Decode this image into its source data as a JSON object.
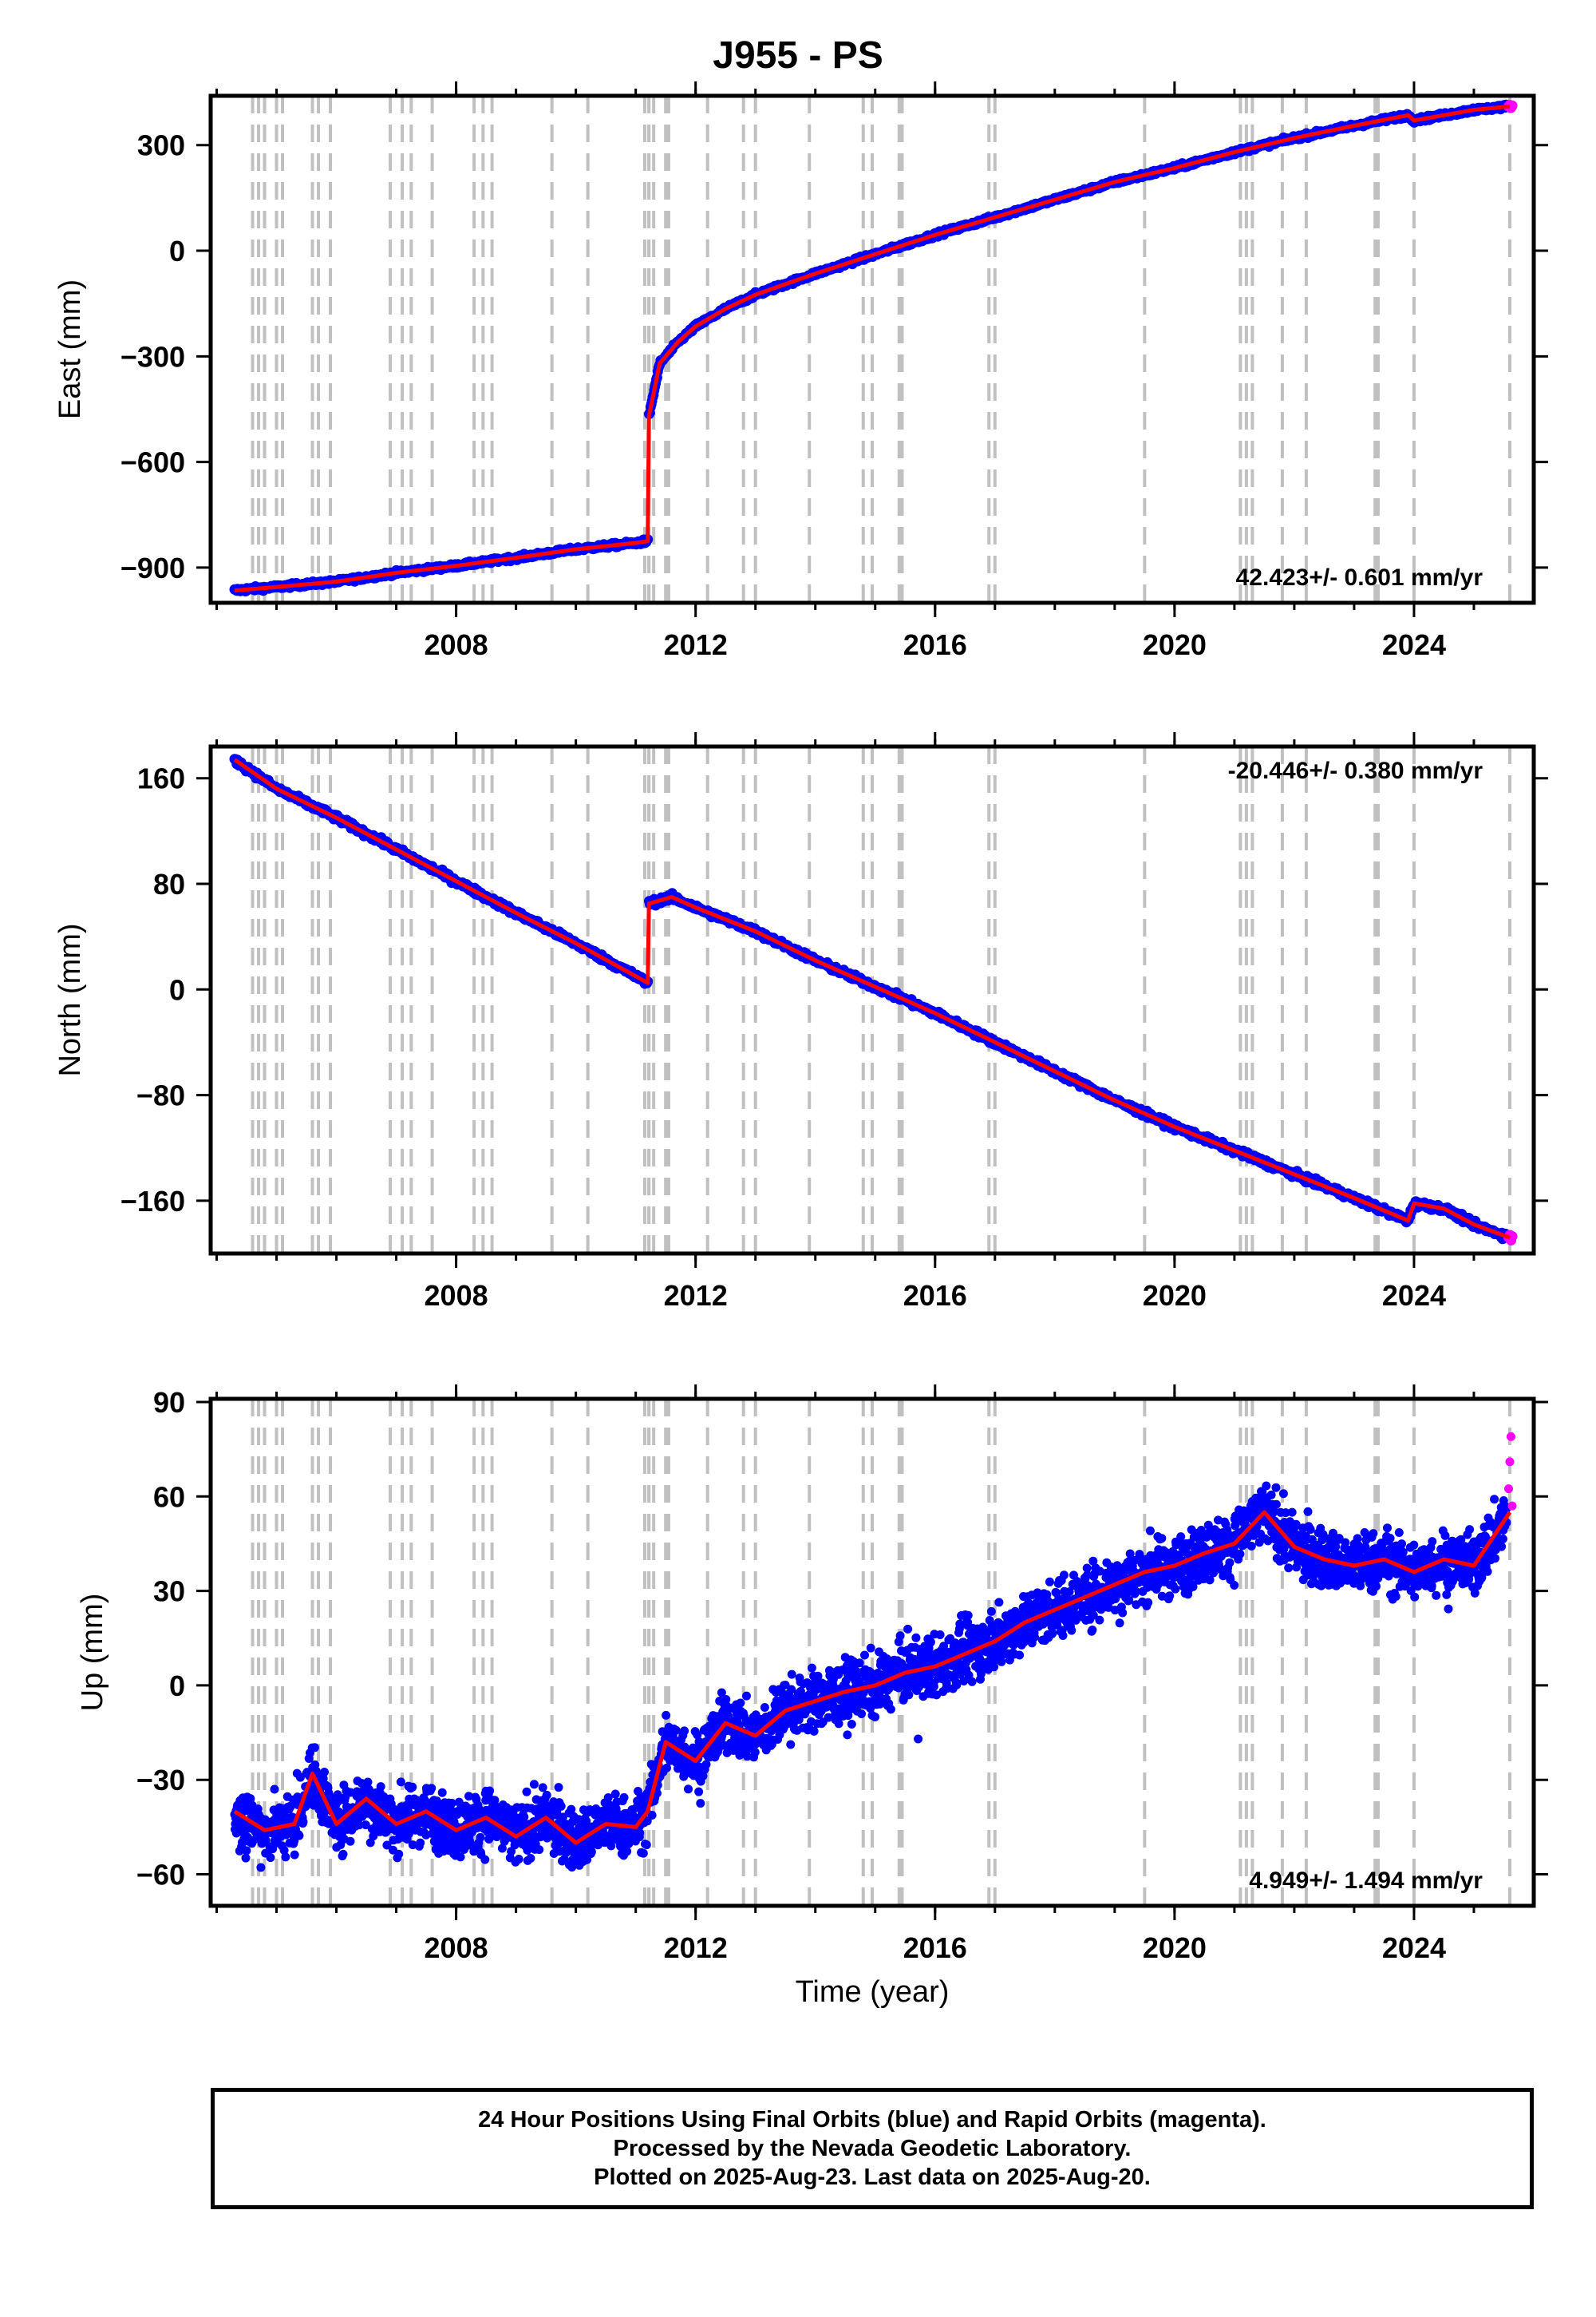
{
  "title": "J955 - PS",
  "caption": {
    "line1": "24 Hour Positions Using Final Orbits (blue) and Rapid Orbits (magenta).",
    "line2": "Processed by the Nevada Geodetic Laboratory.",
    "line3": "Plotted on 2025-Aug-23. Last data on 2025-Aug-20."
  },
  "colors": {
    "final_orbits": "#0000ff",
    "rapid_orbits": "#ff00ff",
    "model": "#ff0000",
    "event_lines": "#c0c0c0"
  },
  "chart_data": [
    {
      "type": "scatter",
      "name": "east",
      "ylabel": "East (mm)",
      "xlabel": "",
      "xlim": [
        2003.9,
        2026.0
      ],
      "ylim": [
        -1000,
        440
      ],
      "xticks": [
        2008,
        2012,
        2016,
        2020,
        2024
      ],
      "yticks": [
        300,
        0,
        -300,
        -600,
        -900
      ],
      "ytick_labels": [
        "300",
        "0",
        "−300",
        "−600",
        "−900"
      ],
      "rate": "42.423+/- 0.601 mm/yr",
      "rate_position": "bottom-right",
      "grid": false,
      "x": [
        2004.3,
        2005.0,
        2006.0,
        2007.0,
        2008.0,
        2009.0,
        2010.0,
        2011.0,
        2011.2,
        2011.22,
        2011.4,
        2011.7,
        2012.0,
        2012.5,
        2013.0,
        2013.5,
        2014.0,
        2015.0,
        2016.0,
        2017.0,
        2018.0,
        2019.0,
        2020.0,
        2021.0,
        2022.0,
        2023.0,
        2023.9,
        2024.0,
        2024.5,
        2025.0,
        2025.6
      ],
      "y": [
        -965,
        -955,
        -940,
        -915,
        -895,
        -872,
        -848,
        -830,
        -825,
        -470,
        -320,
        -260,
        -215,
        -165,
        -125,
        -95,
        -65,
        -10,
        45,
        95,
        145,
        195,
        235,
        280,
        320,
        355,
        385,
        370,
        385,
        400,
        410
      ]
    },
    {
      "type": "scatter",
      "name": "north",
      "ylabel": "North (mm)",
      "xlabel": "",
      "xlim": [
        2003.9,
        2026.0
      ],
      "ylim": [
        -200,
        184
      ],
      "xticks": [
        2008,
        2012,
        2016,
        2020,
        2024
      ],
      "yticks": [
        160,
        80,
        0,
        -80,
        -160
      ],
      "ytick_labels": [
        "160",
        "80",
        "0",
        "−80",
        "−160"
      ],
      "rate": "-20.446+/- 0.380 mm/yr",
      "rate_position": "top-right",
      "grid": false,
      "x": [
        2004.3,
        2005.0,
        2006.0,
        2007.0,
        2008.0,
        2009.0,
        2010.0,
        2011.0,
        2011.2,
        2011.22,
        2011.6,
        2012.0,
        2013.0,
        2014.0,
        2015.0,
        2016.0,
        2017.0,
        2018.0,
        2019.0,
        2020.0,
        2021.0,
        2022.0,
        2023.0,
        2023.9,
        2024.0,
        2024.5,
        2025.0,
        2025.6
      ],
      "y": [
        174,
        152,
        130,
        106,
        82,
        58,
        35,
        10,
        5,
        65,
        70,
        62,
        44,
        22,
        2,
        -18,
        -40,
        -62,
        -84,
        -104,
        -122,
        -140,
        -158,
        -175,
        -162,
        -166,
        -178,
        -188
      ]
    },
    {
      "type": "scatter",
      "name": "up",
      "ylabel": "Up (mm)",
      "xlabel": "Time (year)",
      "xlim": [
        2003.9,
        2026.0
      ],
      "ylim": [
        -70,
        91
      ],
      "xticks": [
        2008,
        2012,
        2016,
        2020,
        2024
      ],
      "yticks": [
        90,
        60,
        30,
        0,
        -30,
        -60
      ],
      "ytick_labels": [
        "90",
        "60",
        "30",
        "0",
        "−30",
        "−60"
      ],
      "rate": "4.949+/- 1.494 mm/yr",
      "rate_position": "bottom-right",
      "grid": false,
      "x": [
        2004.3,
        2004.8,
        2005.3,
        2005.6,
        2006.0,
        2006.5,
        2007.0,
        2007.5,
        2008.0,
        2008.5,
        2009.0,
        2009.5,
        2010.0,
        2010.5,
        2011.0,
        2011.2,
        2011.5,
        2012.0,
        2012.5,
        2013.0,
        2013.5,
        2014.0,
        2014.5,
        2015.0,
        2015.5,
        2016.0,
        2016.5,
        2017.0,
        2017.5,
        2018.0,
        2018.5,
        2019.0,
        2019.5,
        2020.0,
        2020.5,
        2021.0,
        2021.5,
        2022.0,
        2022.5,
        2023.0,
        2023.5,
        2024.0,
        2024.5,
        2025.0,
        2025.6
      ],
      "y": [
        -40,
        -46,
        -44,
        -28,
        -44,
        -36,
        -44,
        -40,
        -46,
        -42,
        -48,
        -42,
        -50,
        -44,
        -45,
        -40,
        -18,
        -24,
        -12,
        -16,
        -8,
        -5,
        -2,
        0,
        4,
        6,
        10,
        14,
        20,
        24,
        28,
        32,
        36,
        38,
        42,
        45,
        55,
        44,
        40,
        38,
        40,
        36,
        40,
        38,
        55
      ]
    }
  ],
  "event_lines_years": [
    2004.6,
    2004.7,
    2004.8,
    2005.0,
    2005.1,
    2005.6,
    2005.7,
    2005.9,
    2006.9,
    2007.1,
    2007.25,
    2007.6,
    2008.3,
    2008.45,
    2008.6,
    2009.6,
    2010.2,
    2011.15,
    2011.22,
    2011.3,
    2011.5,
    2011.55,
    2012.2,
    2012.8,
    2013.0,
    2013.9,
    2014.8,
    2014.95,
    2015.4,
    2015.45,
    2016.9,
    2017.0,
    2019.5,
    2021.1,
    2021.2,
    2021.3,
    2021.8,
    2022.2,
    2023.35,
    2023.4,
    2024.0,
    2025.6
  ]
}
